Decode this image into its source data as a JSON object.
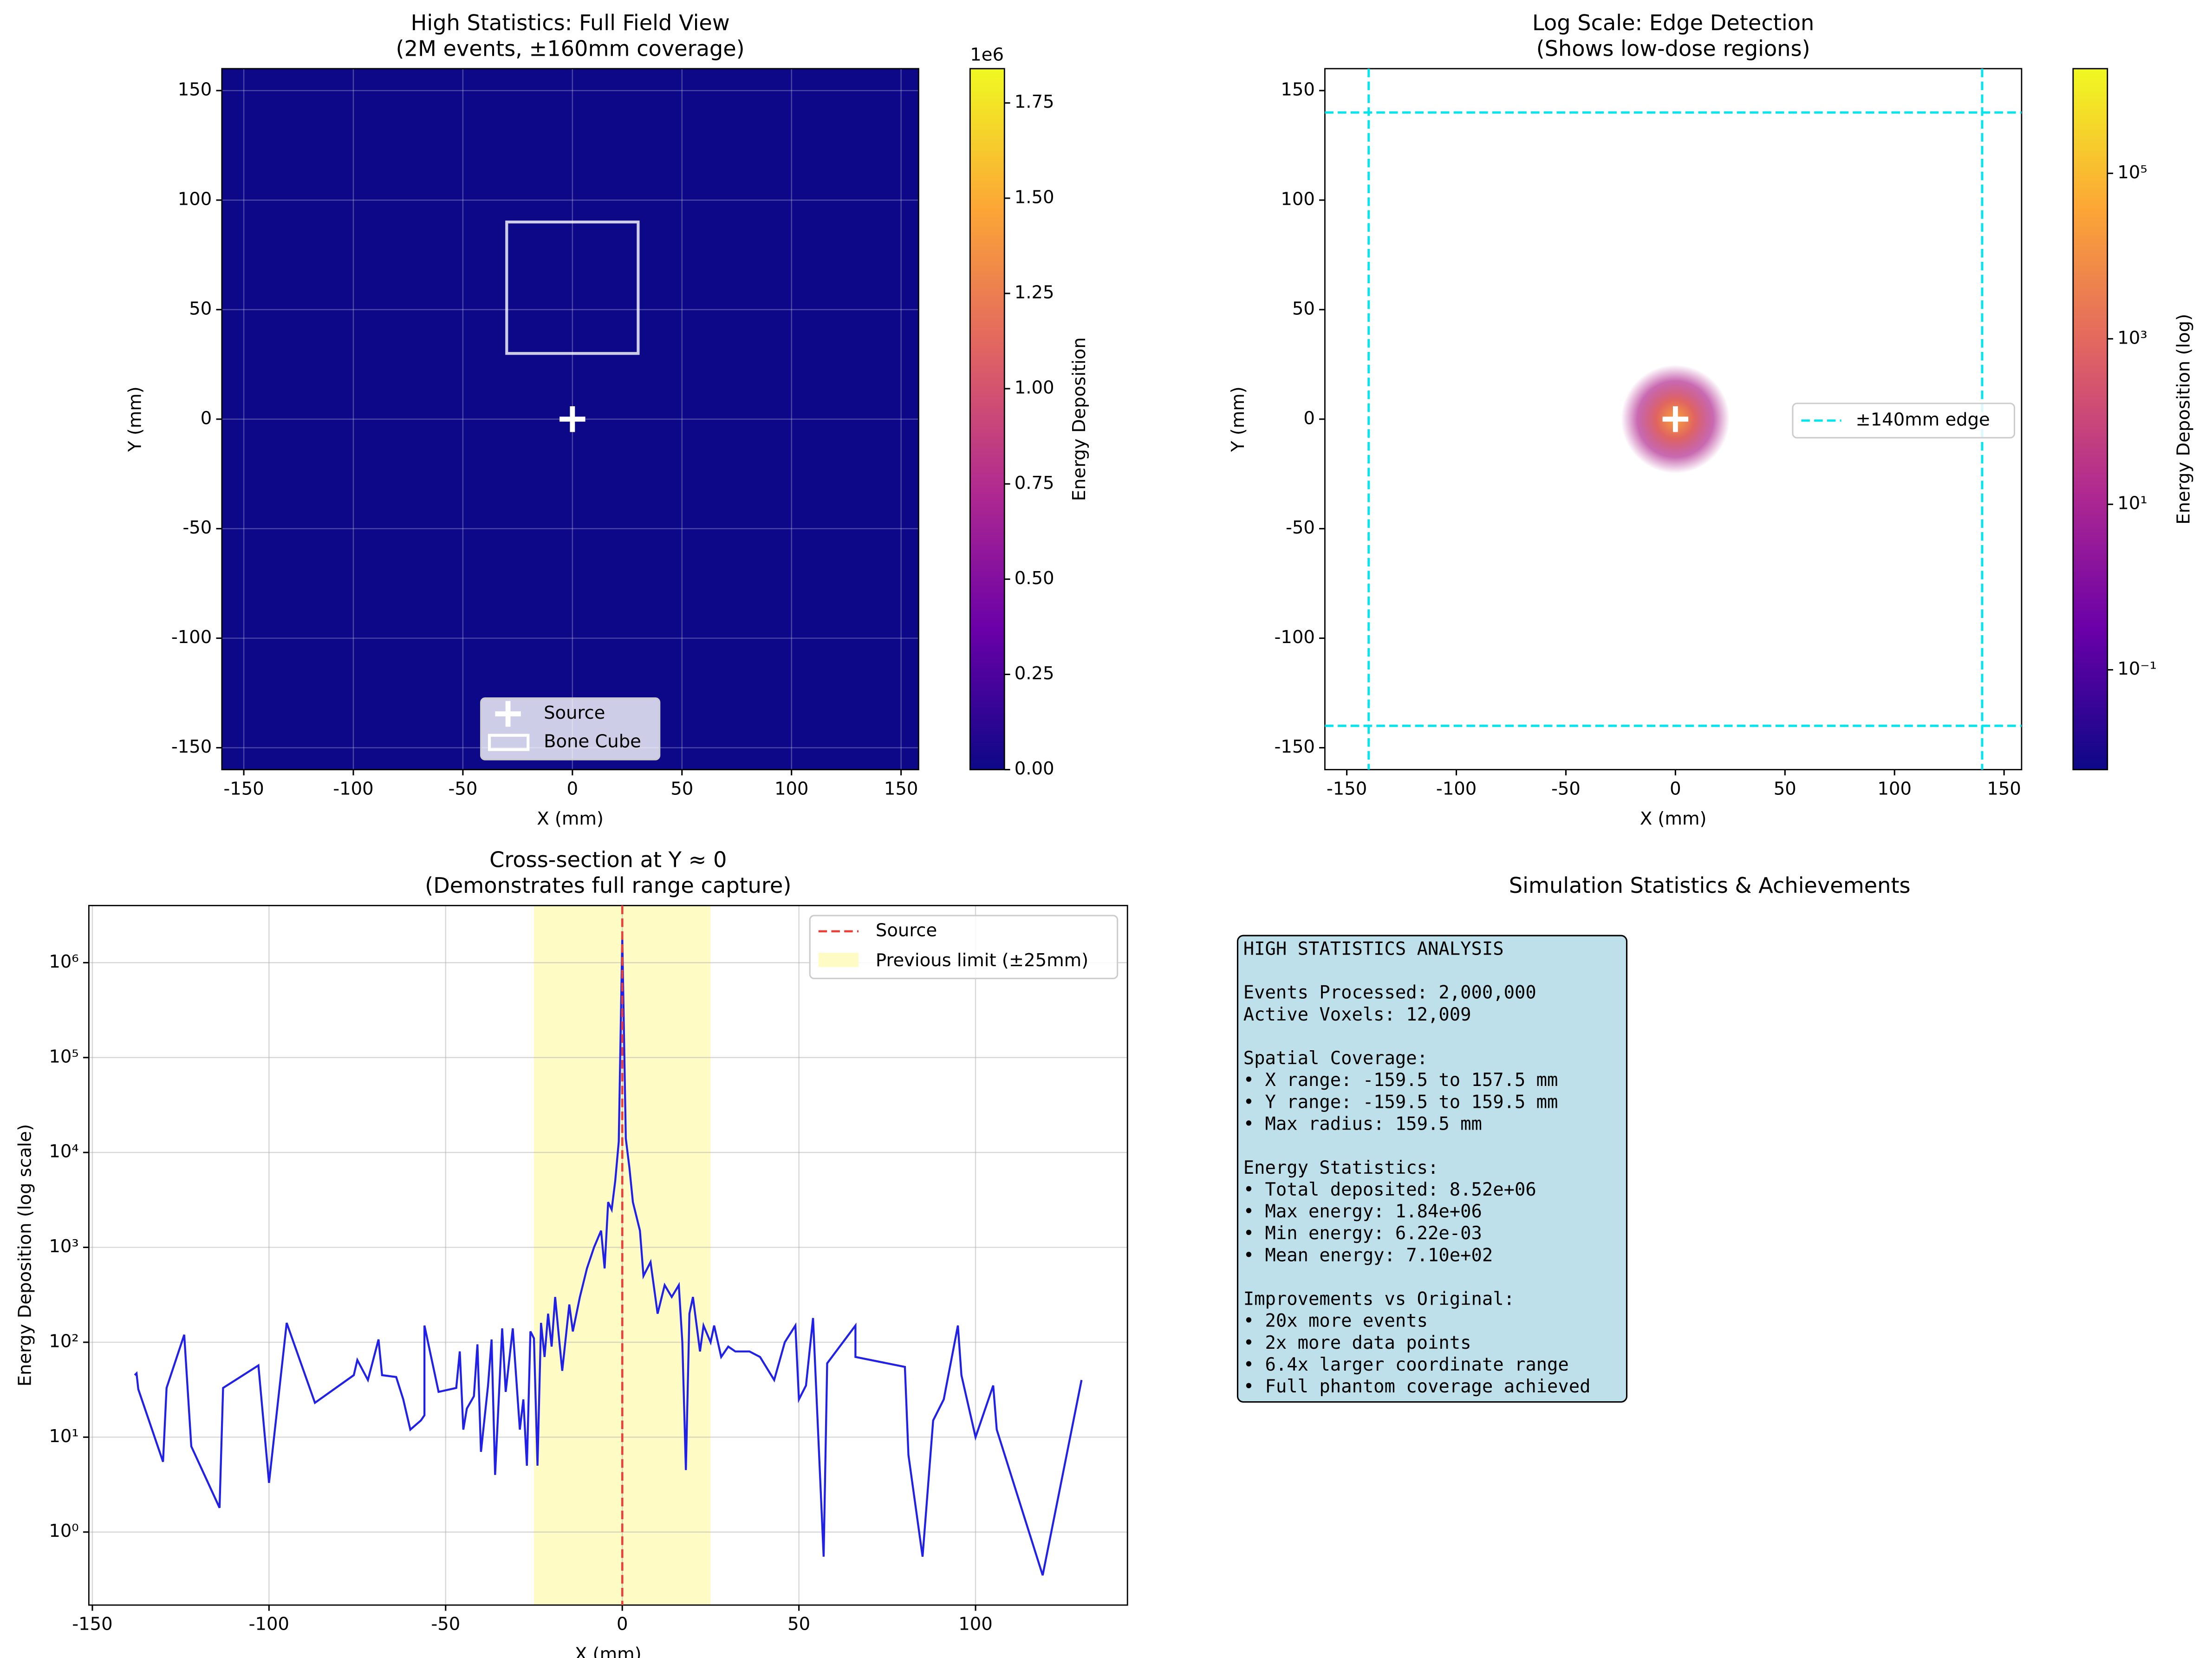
{
  "chart_data": [
    {
      "type": "heatmap",
      "title": [
        "High Statistics: Full Field View",
        "(2M events, ±160mm coverage)"
      ],
      "x_label": "X (mm)",
      "y_label": "Y (mm)",
      "xlim": [
        -160,
        158
      ],
      "ylim": [
        -160,
        160
      ],
      "xticks": [
        -150,
        -100,
        -50,
        0,
        50,
        100,
        150
      ],
      "yticks": [
        -150,
        -100,
        -50,
        0,
        50,
        100,
        150
      ],
      "grid": true,
      "background_color": "#0d0887",
      "source": [
        0,
        0
      ],
      "bone_cube": {
        "x": [
          -30,
          30
        ],
        "y": [
          30,
          90
        ]
      },
      "legend": [
        "Source",
        "Bone Cube"
      ],
      "colorbar": {
        "label": "Energy Deposition",
        "offset_text": "1e6",
        "log": false,
        "lim": [
          0,
          1840000
        ],
        "ticks": [
          {
            "value": 0,
            "label": "0.00"
          },
          {
            "value": 250000,
            "label": "0.25"
          },
          {
            "value": 500000,
            "label": "0.50"
          },
          {
            "value": 750000,
            "label": "0.75"
          },
          {
            "value": 1000000,
            "label": "1.00"
          },
          {
            "value": 1250000,
            "label": "1.25"
          },
          {
            "value": 1500000,
            "label": "1.50"
          },
          {
            "value": 1750000,
            "label": "1.75"
          }
        ]
      }
    },
    {
      "type": "heatmap",
      "title": [
        "Log Scale: Edge Detection",
        "(Shows low-dose regions)"
      ],
      "x_label": "X (mm)",
      "y_label": "Y (mm)",
      "xlim": [
        -160,
        158
      ],
      "ylim": [
        -160,
        160
      ],
      "xticks": [
        -150,
        -100,
        -50,
        0,
        50,
        100,
        150
      ],
      "yticks": [
        -150,
        -100,
        -50,
        0,
        50,
        100,
        150
      ],
      "grid": false,
      "background_color": "#ffffff",
      "source": [
        0,
        0
      ],
      "edge": {
        "value": 140,
        "color": "#00e5ee",
        "label": "±140mm edge"
      },
      "colorbar": {
        "label": "Energy Deposition (log)",
        "log": true,
        "lim": [
          0.00622,
          1840000
        ],
        "ticks": [
          {
            "value": 0.1,
            "label": "10⁻¹"
          },
          {
            "value": 10,
            "label": "10¹"
          },
          {
            "value": 1000,
            "label": "10³"
          },
          {
            "value": 100000,
            "label": "10⁵"
          }
        ]
      }
    },
    {
      "type": "line",
      "title": [
        "Cross-section at Y ≈ 0",
        "(Demonstrates full range capture)"
      ],
      "x_label": "X (mm)",
      "y_label": "Energy Deposition (log scale)",
      "xlim": [
        -151,
        143
      ],
      "ylim": [
        0.17,
        4000000
      ],
      "log_y": true,
      "grid": true,
      "xticks": [
        -150,
        -100,
        -50,
        0,
        50,
        100
      ],
      "yticks": [
        {
          "value": 1,
          "label": "10⁰"
        },
        {
          "value": 10,
          "label": "10¹"
        },
        {
          "value": 100,
          "label": "10²"
        },
        {
          "value": 1000,
          "label": "10³"
        },
        {
          "value": 10000,
          "label": "10⁴"
        },
        {
          "value": 100000,
          "label": "10⁵"
        },
        {
          "value": 1000000,
          "label": "10⁶"
        }
      ],
      "vline": {
        "x": 0,
        "label": "Source",
        "color": "#e8403a"
      },
      "span": {
        "x": [
          -25,
          25
        ],
        "label": "Previous limit (±25mm)",
        "color": "#fffbc4"
      },
      "series": [
        {
          "color": "#2020e8",
          "x": [
            -138,
            -137.5,
            -137,
            -130,
            -129,
            -124,
            -122,
            -114,
            -113,
            -103,
            -100,
            -95,
            -87,
            -76,
            -75,
            -72,
            -69,
            -68,
            -64,
            -62,
            -60,
            -57,
            -56,
            -56,
            -52,
            -47,
            -46,
            -45,
            -44,
            -42,
            -41,
            -40,
            -38,
            -37,
            -36,
            -34,
            -33,
            -31,
            -29,
            -28,
            -27,
            -26,
            -25,
            -24,
            -23,
            -22,
            -21,
            -20,
            -19,
            -18,
            -17,
            -15,
            -14,
            -12,
            -10,
            -8,
            -6,
            -5,
            -4,
            -3,
            -2,
            -1,
            0,
            1,
            2,
            3,
            5,
            6,
            8,
            10,
            12,
            14,
            16,
            17,
            18,
            19,
            20,
            22,
            23,
            25,
            26,
            28,
            30,
            32,
            36,
            39,
            43,
            46,
            49,
            50,
            52,
            54,
            57,
            58,
            66,
            66,
            80,
            81,
            85,
            88,
            91,
            95,
            96,
            100,
            105,
            106,
            119,
            130
          ],
          "values": [
            45,
            47,
            32,
            5.5,
            33,
            120,
            8,
            1.8,
            33,
            57,
            3.3,
            160,
            23,
            45,
            65,
            40,
            107,
            45,
            43,
            25,
            12,
            15,
            17,
            150,
            30,
            33,
            80,
            12,
            20,
            27,
            95,
            7,
            35,
            107,
            4,
            140,
            30,
            140,
            12,
            25,
            5,
            130,
            110,
            5,
            160,
            70,
            200,
            90,
            300,
            120,
            50,
            250,
            130,
            300,
            600,
            1000,
            1500,
            600,
            3000,
            2500,
            5000,
            13000,
            1840000,
            14000,
            7000,
            3000,
            1500,
            500,
            700,
            200,
            400,
            300,
            400,
            100,
            4.5,
            200,
            300,
            80,
            150,
            100,
            150,
            70,
            90,
            80,
            80,
            70,
            40,
            100,
            150,
            25,
            35,
            180,
            0.55,
            60,
            150,
            70,
            55,
            6.5,
            0.55,
            15,
            25,
            150,
            45,
            10,
            35,
            12,
            0.35,
            40
          ]
        }
      ]
    }
  ],
  "text_panel": {
    "title": "Simulation Statistics & Achievements",
    "blocks": [
      [
        "HIGH STATISTICS ANALYSIS"
      ],
      [
        "Events Processed: 2,000,000",
        "Active Voxels: 12,009"
      ],
      [
        "Spatial Coverage:",
        "• X range: -159.5 to 157.5 mm",
        "• Y range: -159.5 to 159.5 mm",
        "• Max radius: 159.5 mm"
      ],
      [
        "Energy Statistics:",
        "• Total deposited: 8.52e+06",
        "• Max energy: 1.84e+06",
        "• Min energy: 6.22e-03",
        "• Mean energy: 7.10e+02"
      ],
      [
        "Improvements vs Original:",
        "• 20x more events",
        "• 2x more data points",
        "• 6.4x larger coordinate range",
        "• Full phantom coverage achieved"
      ]
    ]
  }
}
